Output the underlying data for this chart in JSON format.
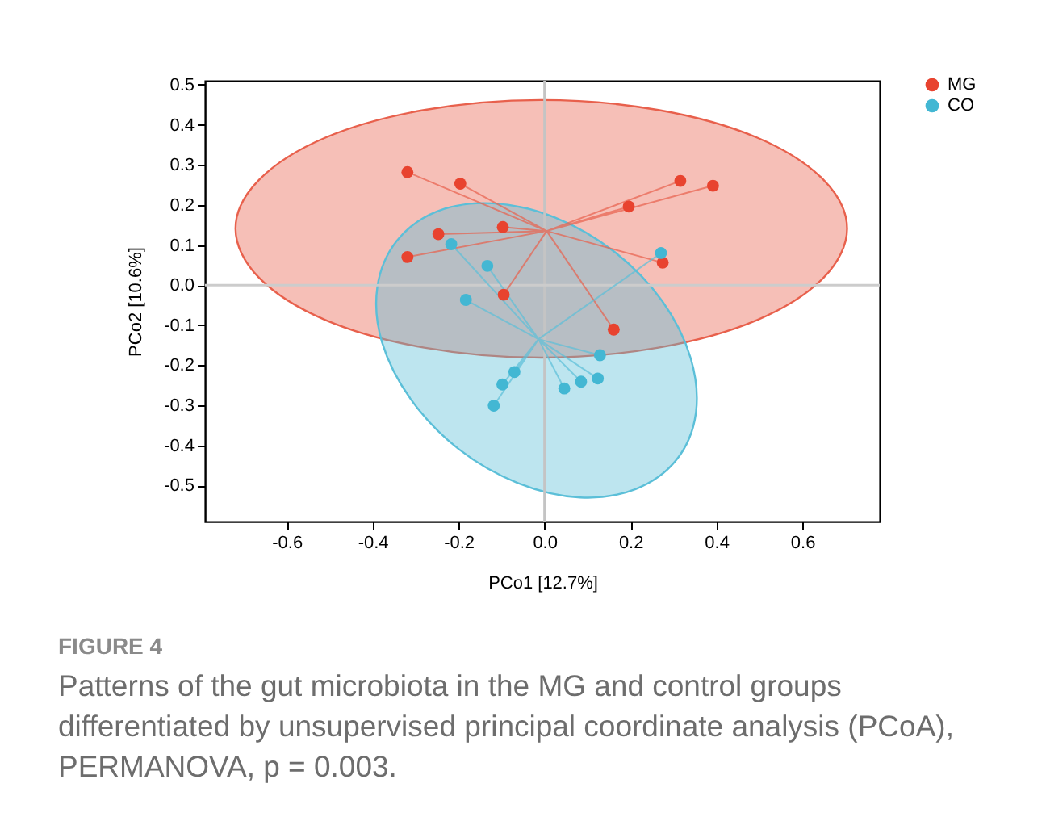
{
  "chart_data": {
    "type": "scatter",
    "xlabel": "PCo1 [12.7%]",
    "ylabel": "PCo2 [10.6%]",
    "xlim": [
      -0.79,
      0.78
    ],
    "ylim": [
      -0.59,
      0.51
    ],
    "xticks": [
      -0.6,
      -0.4,
      -0.2,
      {
        "value": 0,
        "label": "0.0"
      },
      0.2,
      0.4,
      0.6
    ],
    "yticks": [
      0.5,
      0.4,
      0.3,
      0.2,
      0.1,
      {
        "value": 0,
        "label": "0.0"
      },
      -0.1,
      -0.2,
      -0.3,
      -0.4,
      -0.5
    ],
    "grid": false,
    "legend": "top right",
    "ref_lines": [
      {
        "axis": "x",
        "value": 0,
        "color": "#c4c4c4"
      },
      {
        "axis": "y",
        "value": 0,
        "color": "#cccccc"
      }
    ],
    "series": [
      {
        "type": "area",
        "color": "#e8604c",
        "x": [
          0.704,
          0.649,
          0.495,
          0.265,
          -0.008,
          -0.28,
          -0.51,
          -0.664,
          -0.719,
          -0.664,
          -0.51,
          -0.28,
          -0.008,
          0.265,
          0.495,
          0.649
        ],
        "values": [
          0.141,
          0.263,
          0.368,
          0.437,
          0.462,
          0.437,
          0.368,
          0.263,
          0.141,
          0.018,
          -0.087,
          -0.156,
          -0.181,
          -0.156,
          -0.087,
          0.018
        ]
      },
      {
        "type": "area",
        "color": "#5bbfd8",
        "x": [
          0.307,
          0.212,
          0.083,
          -0.062,
          -0.2,
          -0.311,
          -0.378,
          -0.389,
          -0.344,
          -0.25,
          -0.121,
          0.024,
          0.163,
          0.274,
          0.34,
          0.352
        ],
        "values": [
          -0.436,
          -0.509,
          -0.53,
          -0.494,
          -0.409,
          -0.285,
          -0.143,
          -0.005,
          0.11,
          0.184,
          0.204,
          0.169,
          0.083,
          -0.04,
          -0.182,
          -0.321
        ]
      },
      {
        "type": "line",
        "color": "#e8604c",
        "x": [
          -0.319,
          0.005,
          -0.196,
          0.005,
          -0.097,
          0.005,
          -0.247,
          0.005,
          -0.319,
          0.005,
          -0.095,
          0.005,
          0.316,
          0.005,
          0.392,
          0.005,
          0.196,
          0.005,
          0.275,
          0.005,
          0.161
        ],
        "values": [
          0.282,
          0.135,
          0.253,
          0.135,
          0.145,
          0.135,
          0.127,
          0.135,
          0.07,
          0.135,
          -0.024,
          0.135,
          0.26,
          0.135,
          0.248,
          0.135,
          0.196,
          0.135,
          0.056,
          0.135,
          -0.111
        ]
      },
      {
        "type": "line",
        "color": "#5bbfd8",
        "x": [
          -0.217,
          -0.014,
          -0.133,
          -0.014,
          -0.183,
          -0.014,
          -0.07,
          -0.014,
          -0.098,
          -0.014,
          -0.118,
          -0.014,
          0.271,
          -0.014,
          0.129,
          -0.014,
          0.124,
          -0.014,
          0.085,
          -0.014,
          0.046
        ],
        "values": [
          0.102,
          -0.135,
          0.048,
          -0.135,
          -0.037,
          -0.135,
          -0.217,
          -0.135,
          -0.248,
          -0.135,
          -0.301,
          -0.135,
          0.08,
          -0.135,
          -0.175,
          -0.135,
          -0.233,
          -0.135,
          -0.241,
          -0.135,
          -0.258
        ]
      },
      {
        "name": "MG",
        "color": "#e8432f",
        "x": [
          -0.319,
          -0.196,
          -0.097,
          -0.247,
          -0.319,
          -0.095,
          0.316,
          0.392,
          0.196,
          0.275,
          0.161
        ],
        "values": [
          0.282,
          0.253,
          0.145,
          0.127,
          0.07,
          -0.024,
          0.26,
          0.248,
          0.196,
          0.056,
          -0.111
        ]
      },
      {
        "name": "CO",
        "color": "#43b7d3",
        "x": [
          -0.217,
          -0.133,
          -0.183,
          -0.07,
          -0.098,
          -0.118,
          0.271,
          0.129,
          0.124,
          0.085,
          0.046
        ],
        "values": [
          0.102,
          0.048,
          -0.037,
          -0.217,
          -0.248,
          -0.301,
          0.08,
          -0.175,
          -0.233,
          -0.241,
          -0.258
        ]
      }
    ],
    "annotations": [
      "FIGURE 4",
      "Patterns of the gut microbiota in the MG and control groups differentiated by unsupervised principal coordinate analysis (PCoA), PERMANOVA, p = 0.003."
    ]
  }
}
